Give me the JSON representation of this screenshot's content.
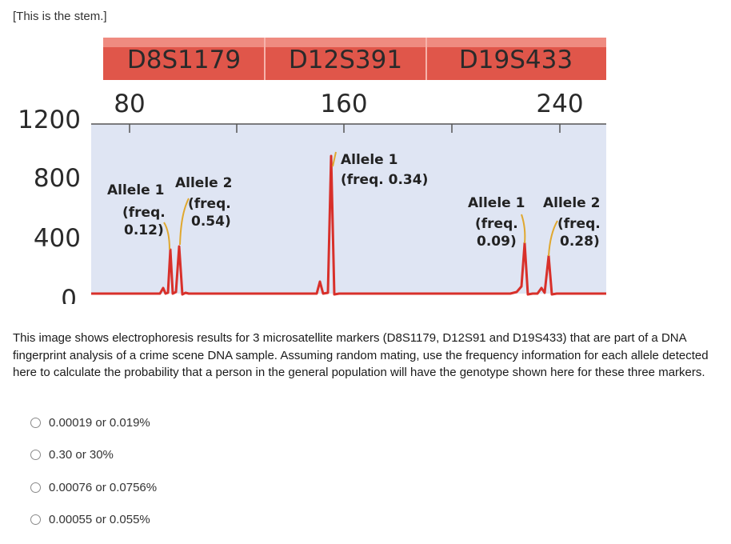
{
  "stem": "[This is the stem.]",
  "colors": {
    "marker_bar": "#e0564a",
    "trace": "#d8302a",
    "plot_bg": "#dfe5f3"
  },
  "chart_data": {
    "type": "line",
    "markers": [
      "D8S1179",
      "D12S391",
      "D19S433"
    ],
    "x_ticks": [
      "80",
      "160",
      "240"
    ],
    "y_ticks": [
      "1200",
      "800",
      "400",
      "0"
    ],
    "peaks": [
      {
        "label": "Allele 1",
        "freq_line1": "(freq.",
        "freq_line2": "0.12)",
        "height": 420
      },
      {
        "label": "Allele 2",
        "freq_line1": "(freq.",
        "freq_line2": "0.54)",
        "height": 450
      },
      {
        "label": "Allele 1",
        "freq_line1": "(freq. 0.34)",
        "freq_line2": "",
        "height": 860
      },
      {
        "label": "Allele 1",
        "freq_line1": "(freq.",
        "freq_line2": "0.09)",
        "height": 300
      },
      {
        "label": "Allele 2",
        "freq_line1": "(freq.",
        "freq_line2": "0.28)",
        "height": 320
      }
    ]
  },
  "question": "This image shows electrophoresis results for 3 microsatellite markers (D8S1179, D12S91 and D19S433) that are part of a DNA fingerprint analysis of a crime scene DNA sample. Assuming random mating, use the frequency information for each allele detected here to calculate the probability that a person in the general population will have the genotype shown here for these three markers.",
  "options": [
    "0.00019 or 0.019%",
    "0.30 or 30%",
    "0.00076 or 0.0756%",
    "0.00055 or 0.055%"
  ]
}
